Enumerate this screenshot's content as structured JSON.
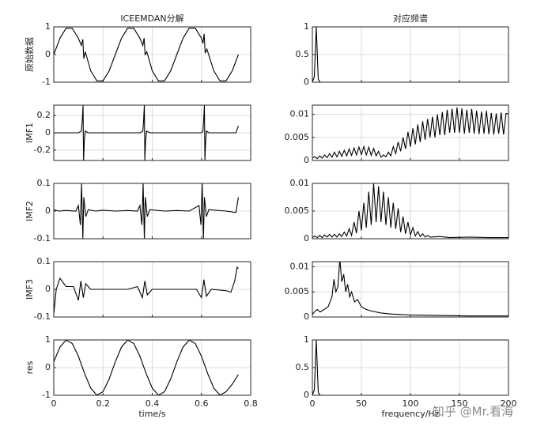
{
  "watermark": "知乎 @Mr.看海",
  "chart_data": [
    {
      "type": "line",
      "title": "ICEEMDAN分解",
      "ylabel": "原始数据",
      "color": "#000000",
      "grid": true,
      "xlim": [
        0,
        0.8
      ],
      "ylim": [
        -1,
        1
      ],
      "xticks": [
        0,
        0.2,
        0.4,
        0.6,
        0.8
      ],
      "yticks": [
        -1,
        0,
        1
      ],
      "x": [
        0,
        0.025,
        0.05,
        0.075,
        0.1,
        0.112,
        0.118,
        0.122,
        0.128,
        0.15,
        0.175,
        0.2,
        0.225,
        0.25,
        0.275,
        0.3,
        0.325,
        0.35,
        0.362,
        0.367,
        0.371,
        0.378,
        0.4,
        0.425,
        0.45,
        0.475,
        0.5,
        0.525,
        0.55,
        0.575,
        0.6,
        0.606,
        0.611,
        0.615,
        0.622,
        0.65,
        0.675,
        0.7,
        0.725,
        0.75
      ],
      "values": [
        0,
        0.588,
        0.951,
        0.951,
        0.588,
        0.33,
        0.55,
        -0.15,
        0.1,
        -0.588,
        -0.951,
        -0.951,
        -0.588,
        0,
        0.588,
        0.951,
        0.951,
        0.588,
        0.33,
        0.6,
        0,
        0.1,
        -0.588,
        -0.951,
        -0.951,
        -0.588,
        0,
        0.588,
        0.951,
        0.951,
        0.588,
        0.4,
        0.75,
        0.05,
        0.2,
        -0.588,
        -0.951,
        -0.951,
        -0.588,
        0
      ]
    },
    {
      "type": "line",
      "title": "对应频谱",
      "color": "#000000",
      "grid": true,
      "xlim": [
        0,
        200
      ],
      "ylim": [
        0,
        1
      ],
      "xticks": [
        0,
        50,
        100,
        150,
        200
      ],
      "yticks": [
        0,
        0.5,
        1
      ],
      "x": [
        0,
        2,
        4,
        6,
        8,
        200
      ],
      "values": [
        0,
        0.1,
        1,
        0.05,
        0,
        0
      ]
    },
    {
      "type": "line",
      "ylabel": "IMF1",
      "color": "#000000",
      "grid": true,
      "xlim": [
        0,
        0.8
      ],
      "ylim": [
        -0.32,
        0.32
      ],
      "xticks": [
        0,
        0.2,
        0.4,
        0.6,
        0.8
      ],
      "yticks": [
        -0.2,
        0,
        0.2
      ],
      "x": [
        0,
        0.1,
        0.112,
        0.116,
        0.119,
        0.121,
        0.124,
        0.128,
        0.14,
        0.35,
        0.362,
        0.365,
        0.368,
        0.37,
        0.373,
        0.377,
        0.39,
        0.6,
        0.606,
        0.609,
        0.612,
        0.614,
        0.617,
        0.62,
        0.63,
        0.74,
        0.75
      ],
      "values": [
        0,
        0,
        0.02,
        0.15,
        0.32,
        -0.32,
        -0.1,
        0.02,
        0,
        0,
        0.02,
        0.15,
        0.32,
        -0.32,
        -0.1,
        0.02,
        0,
        0,
        0.02,
        0.15,
        0.32,
        -0.32,
        -0.1,
        0.02,
        0,
        0,
        0.08
      ]
    },
    {
      "type": "line",
      "color": "#000000",
      "grid": true,
      "xlim": [
        0,
        200
      ],
      "ylim": [
        0,
        0.012
      ],
      "xticks": [
        0,
        50,
        100,
        150,
        200
      ],
      "yticks": [
        0,
        0.005,
        0.01
      ],
      "x": [
        0,
        2.5,
        5,
        7.5,
        10,
        12.5,
        15,
        17.5,
        20,
        22.5,
        25,
        27.5,
        30,
        32.5,
        35,
        37.5,
        40,
        42.5,
        45,
        47.5,
        50,
        52.5,
        55,
        57.5,
        60,
        62.5,
        65,
        67.5,
        70,
        72.5,
        75,
        77.5,
        80,
        82.5,
        85,
        87.5,
        90,
        92.5,
        95,
        97.5,
        100,
        102.5,
        105,
        107.5,
        110,
        112.5,
        115,
        117.5,
        120,
        122.5,
        125,
        127.5,
        130,
        132.5,
        135,
        137.5,
        140,
        142.5,
        145,
        147.5,
        150,
        152.5,
        155,
        157.5,
        160,
        162.5,
        165,
        167.5,
        170,
        172.5,
        175,
        177.5,
        180,
        182.5,
        185,
        187.5,
        190,
        192.5,
        195,
        197.5,
        200
      ],
      "values": [
        0.0005,
        0.0008,
        0.0004,
        0.001,
        0.0005,
        0.0012,
        0.0006,
        0.0015,
        0.0007,
        0.0018,
        0.0008,
        0.002,
        0.0009,
        0.0022,
        0.001,
        0.0025,
        0.0011,
        0.0027,
        0.0012,
        0.0029,
        0.0013,
        0.003,
        0.0012,
        0.0029,
        0.0011,
        0.0026,
        0.001,
        0.002,
        0.0007,
        0.0012,
        0.0008,
        0.0018,
        0.001,
        0.003,
        0.0015,
        0.004,
        0.002,
        0.005,
        0.0025,
        0.0062,
        0.003,
        0.007,
        0.0035,
        0.0078,
        0.004,
        0.0085,
        0.0045,
        0.009,
        0.005,
        0.0095,
        0.005,
        0.01,
        0.0055,
        0.0105,
        0.0055,
        0.011,
        0.006,
        0.0112,
        0.006,
        0.0115,
        0.006,
        0.0113,
        0.0058,
        0.011,
        0.006,
        0.0112,
        0.0058,
        0.0108,
        0.0057,
        0.0106,
        0.0058,
        0.0108,
        0.0057,
        0.0103,
        0.0056,
        0.0102,
        0.0058,
        0.0104,
        0.0056,
        0.0102,
        0.0101
      ]
    },
    {
      "type": "line",
      "ylabel": "IMF2",
      "color": "#000000",
      "grid": true,
      "xlim": [
        0,
        0.8
      ],
      "ylim": [
        -0.1,
        0.1
      ],
      "xticks": [
        0,
        0.2,
        0.4,
        0.6,
        0.8
      ],
      "yticks": [
        -0.1,
        0,
        0.1
      ],
      "x": [
        0,
        0.02,
        0.05,
        0.09,
        0.1,
        0.108,
        0.113,
        0.118,
        0.122,
        0.13,
        0.14,
        0.17,
        0.2,
        0.25,
        0.3,
        0.34,
        0.35,
        0.358,
        0.363,
        0.368,
        0.372,
        0.38,
        0.39,
        0.45,
        0.5,
        0.55,
        0.59,
        0.598,
        0.603,
        0.608,
        0.612,
        0.62,
        0.63,
        0.7,
        0.74,
        0.75
      ],
      "values": [
        0.005,
        0,
        0.002,
        0,
        0.02,
        -0.05,
        0.1,
        -0.1,
        0.05,
        -0.02,
        0.005,
        0,
        0.003,
        0,
        0.002,
        0,
        0.02,
        -0.05,
        0.1,
        -0.1,
        0.05,
        -0.02,
        0.005,
        0,
        0.002,
        0,
        0.02,
        -0.05,
        0.1,
        -0.1,
        0.05,
        -0.02,
        0.005,
        0,
        -0.005,
        0.05
      ]
    },
    {
      "type": "line",
      "color": "#000000",
      "grid": true,
      "xlim": [
        0,
        200
      ],
      "ylim": [
        0,
        0.01
      ],
      "xticks": [
        0,
        50,
        100,
        150,
        200
      ],
      "yticks": [
        0,
        0.005,
        0.01
      ],
      "x": [
        0,
        2.5,
        5,
        7.5,
        10,
        12.5,
        15,
        17.5,
        20,
        22.5,
        25,
        27.5,
        30,
        32.5,
        35,
        37.5,
        40,
        42.5,
        45,
        47.5,
        50,
        52.5,
        55,
        57.5,
        60,
        62.5,
        65,
        67.5,
        70,
        72.5,
        75,
        77.5,
        80,
        82.5,
        85,
        87.5,
        90,
        92.5,
        95,
        97.5,
        100,
        102.5,
        105,
        107.5,
        110,
        112.5,
        115,
        117.5,
        120,
        130,
        140,
        160,
        180,
        200
      ],
      "values": [
        0.0002,
        0.0005,
        0.0002,
        0.0006,
        0.0002,
        0.0007,
        0.0003,
        0.0008,
        0.0003,
        0.0008,
        0.0003,
        0.0009,
        0.0004,
        0.0012,
        0.0005,
        0.0018,
        0.0006,
        0.003,
        0.001,
        0.005,
        0.0015,
        0.0065,
        0.002,
        0.0085,
        0.0025,
        0.01,
        0.003,
        0.0095,
        0.003,
        0.0085,
        0.0025,
        0.0075,
        0.002,
        0.0065,
        0.0018,
        0.0055,
        0.0012,
        0.004,
        0.0009,
        0.003,
        0.0007,
        0.002,
        0.0005,
        0.0013,
        0.0004,
        0.0009,
        0.0003,
        0.0006,
        0.0003,
        0.0004,
        0.0002,
        0.0003,
        0.0002,
        0.0002
      ]
    },
    {
      "type": "line",
      "ylabel": "IMF3",
      "color": "#000000",
      "grid": true,
      "xlim": [
        0,
        0.8
      ],
      "ylim": [
        -0.1,
        0.1
      ],
      "xticks": [
        0,
        0.2,
        0.4,
        0.6,
        0.8
      ],
      "yticks": [
        -0.1,
        0,
        0.1
      ],
      "x": [
        0,
        0.01,
        0.025,
        0.05,
        0.08,
        0.1,
        0.11,
        0.12,
        0.13,
        0.15,
        0.2,
        0.3,
        0.34,
        0.36,
        0.37,
        0.38,
        0.4,
        0.5,
        0.58,
        0.6,
        0.61,
        0.62,
        0.64,
        0.7,
        0.72,
        0.735,
        0.745,
        0.75
      ],
      "values": [
        -0.09,
        0,
        0.04,
        0.01,
        0.01,
        -0.04,
        0.03,
        -0.03,
        0.02,
        0,
        0,
        0,
        0.01,
        -0.03,
        0.03,
        -0.02,
        0,
        0,
        0,
        -0.03,
        0.035,
        -0.025,
        0,
        -0.005,
        -0.01,
        0.03,
        0.08,
        0.075
      ]
    },
    {
      "type": "line",
      "color": "#000000",
      "grid": true,
      "xlim": [
        0,
        200
      ],
      "ylim": [
        0,
        0.011
      ],
      "xticks": [
        0,
        50,
        100,
        150,
        200
      ],
      "yticks": [
        0,
        0.005,
        0.01
      ],
      "x": [
        0,
        2,
        5,
        8,
        12,
        16,
        20,
        22,
        24,
        26,
        28,
        30,
        32,
        34,
        36,
        38,
        40,
        43,
        46,
        50,
        55,
        60,
        70,
        80,
        100,
        130,
        160,
        200
      ],
      "values": [
        0.0005,
        0.001,
        0.0015,
        0.001,
        0.0015,
        0.002,
        0.004,
        0.0075,
        0.005,
        0.006,
        0.0115,
        0.007,
        0.0085,
        0.005,
        0.0065,
        0.004,
        0.005,
        0.003,
        0.0035,
        0.002,
        0.0015,
        0.0012,
        0.0008,
        0.0006,
        0.0004,
        0.0003,
        0.0002,
        0.0002
      ]
    },
    {
      "type": "line",
      "ylabel": "res",
      "xlabel": "time/s",
      "color": "#000000",
      "grid": true,
      "xlim": [
        0,
        0.8
      ],
      "ylim": [
        -1,
        1
      ],
      "xticks": [
        0,
        0.2,
        0.4,
        0.6,
        0.8
      ],
      "yticks": [
        -1,
        0,
        1
      ],
      "x": [
        0,
        0.025,
        0.05,
        0.075,
        0.1,
        0.125,
        0.15,
        0.175,
        0.2,
        0.225,
        0.25,
        0.275,
        0.3,
        0.325,
        0.35,
        0.375,
        0.4,
        0.425,
        0.45,
        0.475,
        0.5,
        0.525,
        0.55,
        0.575,
        0.6,
        0.625,
        0.65,
        0.675,
        0.7,
        0.725,
        0.75
      ],
      "values": [
        0.21,
        0.74,
        0.995,
        0.87,
        0.41,
        -0.21,
        -0.74,
        -0.995,
        -0.87,
        -0.41,
        0.21,
        0.74,
        0.995,
        0.87,
        0.41,
        -0.21,
        -0.74,
        -0.995,
        -0.87,
        -0.41,
        0.21,
        0.74,
        0.995,
        0.87,
        0.41,
        -0.21,
        -0.74,
        -0.995,
        -0.87,
        -0.6,
        -0.25
      ]
    },
    {
      "type": "line",
      "xlabel": "frequency/Hz",
      "color": "#000000",
      "grid": true,
      "xlim": [
        0,
        200
      ],
      "ylim": [
        0,
        1
      ],
      "xticks": [
        0,
        50,
        100,
        150,
        200
      ],
      "yticks": [
        0,
        0.5,
        1
      ],
      "x": [
        0,
        2,
        4,
        6,
        8,
        200
      ],
      "values": [
        0,
        0.1,
        1,
        0.05,
        0,
        0
      ]
    }
  ]
}
